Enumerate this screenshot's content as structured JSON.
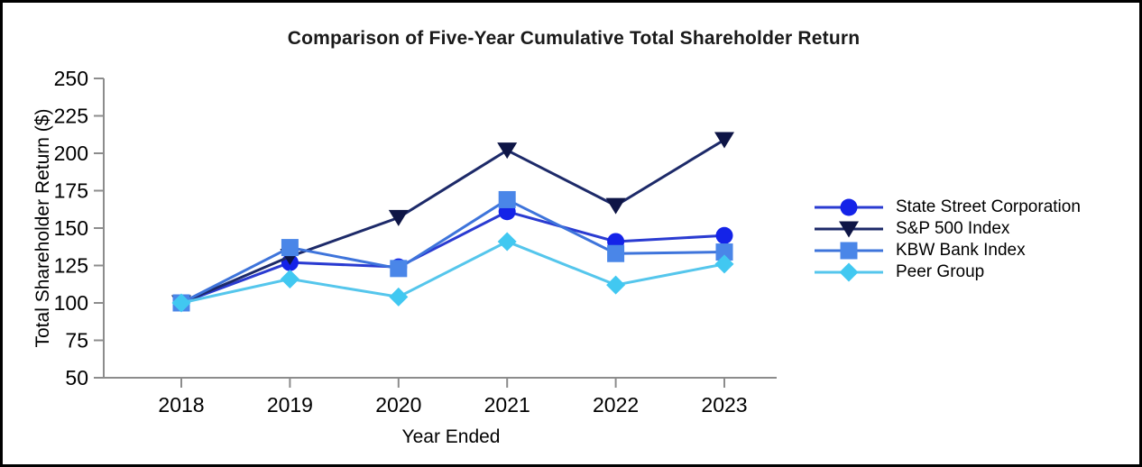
{
  "chart_data": {
    "type": "line",
    "title": "Comparison of Five-Year Cumulative Total Shareholder Return",
    "xlabel": "Year Ended",
    "ylabel": "Total Shareholder Return ($)",
    "categories": [
      "2018",
      "2019",
      "2020",
      "2021",
      "2022",
      "2023"
    ],
    "y_ticks": [
      50,
      75,
      100,
      125,
      150,
      175,
      200,
      225,
      250
    ],
    "ylim": [
      50,
      250
    ],
    "grid": false,
    "legend_position": "right",
    "axis_color": "#8c8c8c",
    "tick_label_color": "#000000",
    "series": [
      {
        "name": "State Street Corporation",
        "marker": "circle",
        "line_color": "#2a3bd1",
        "marker_color": "#1423e8",
        "values": [
          100,
          127,
          124,
          161,
          141,
          145
        ]
      },
      {
        "name": "S&P 500 Index",
        "marker": "triangle-down",
        "line_color": "#1d2a69",
        "marker_color": "#0e1546",
        "values": [
          100,
          131,
          157,
          202,
          165,
          209
        ]
      },
      {
        "name": "KBW Bank Index",
        "marker": "square",
        "line_color": "#3e74db",
        "marker_color": "#4a86e8",
        "values": [
          100,
          137,
          123,
          169,
          133,
          134
        ]
      },
      {
        "name": "Peer Group",
        "marker": "diamond",
        "line_color": "#55c6ec",
        "marker_color": "#41c8f1",
        "values": [
          100,
          116,
          104,
          141,
          112,
          126
        ]
      }
    ]
  }
}
